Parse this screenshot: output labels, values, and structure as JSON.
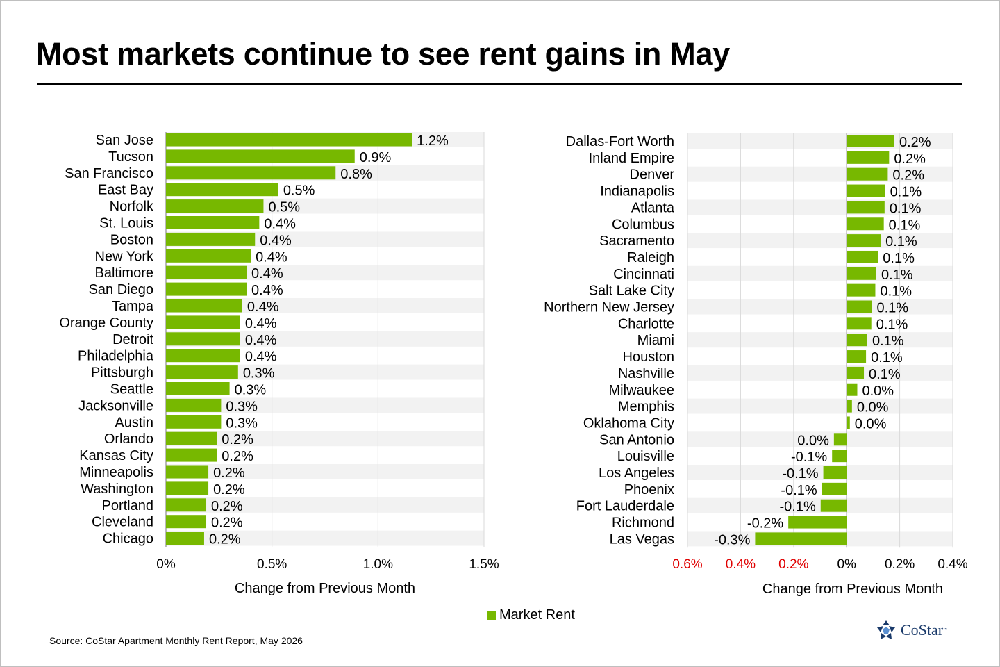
{
  "title": "Most markets continue to see rent gains in May",
  "source": "Source: CoStar Apartment Monthly Rent Report, May 2026",
  "legend": {
    "label": "Market Rent",
    "color": "#77b800"
  },
  "logo": {
    "text": "CoStar",
    "tm": "™"
  },
  "colors": {
    "bar": "#77b800",
    "stripe": "#f2f2f2",
    "grid": "#d9d9d9",
    "negative_tick": "#e00000"
  },
  "chart_data": [
    {
      "type": "bar",
      "orientation": "horizontal",
      "categories": [
        "San Jose",
        "Tucson",
        "San Francisco",
        "East Bay",
        "Norfolk",
        "St. Louis",
        "Boston",
        "New York",
        "Baltimore",
        "San Diego",
        "Tampa",
        "Orange County",
        "Detroit",
        "Philadelphia",
        "Pittsburgh",
        "Seattle",
        "Jacksonville",
        "Austin",
        "Orlando",
        "Kansas City",
        "Minneapolis",
        "Washington",
        "Portland",
        "Cleveland",
        "Chicago"
      ],
      "values": [
        1.16,
        0.89,
        0.8,
        0.53,
        0.46,
        0.44,
        0.42,
        0.4,
        0.38,
        0.38,
        0.36,
        0.35,
        0.35,
        0.35,
        0.34,
        0.3,
        0.26,
        0.26,
        0.24,
        0.24,
        0.2,
        0.2,
        0.19,
        0.19,
        0.18
      ],
      "data_labels": [
        "1.2%",
        "0.9%",
        "0.8%",
        "0.5%",
        "0.5%",
        "0.4%",
        "0.4%",
        "0.4%",
        "0.4%",
        "0.4%",
        "0.4%",
        "0.4%",
        "0.4%",
        "0.4%",
        "0.3%",
        "0.3%",
        "0.3%",
        "0.3%",
        "0.2%",
        "0.2%",
        "0.2%",
        "0.2%",
        "0.2%",
        "0.2%",
        "0.2%"
      ],
      "xlim": [
        0,
        1.5
      ],
      "xticks": [
        "0%",
        "0.5%",
        "1.0%",
        "1.5%"
      ],
      "xlabel": "Change from Previous Month",
      "ylabel": "",
      "grid": true,
      "series": [
        {
          "name": "Market Rent"
        }
      ]
    },
    {
      "type": "bar",
      "orientation": "horizontal",
      "categories": [
        "Dallas-Fort Worth",
        "Inland Empire",
        "Denver",
        "Indianapolis",
        "Atlanta",
        "Columbus",
        "Sacramento",
        "Raleigh",
        "Cincinnati",
        "Salt Lake City",
        "Northern New Jersey",
        "Charlotte",
        "Miami",
        "Houston",
        "Nashville",
        "Milwaukee",
        "Memphis",
        "Oklahoma City",
        "San Antonio",
        "Louisville",
        "Los Angeles",
        "Phoenix",
        "Fort Lauderdale",
        "Richmond",
        "Las Vegas"
      ],
      "values": [
        0.18,
        0.16,
        0.155,
        0.145,
        0.143,
        0.14,
        0.128,
        0.118,
        0.112,
        0.108,
        0.095,
        0.093,
        0.078,
        0.073,
        0.065,
        0.04,
        0.02,
        0.012,
        -0.048,
        -0.055,
        -0.088,
        -0.093,
        -0.098,
        -0.22,
        -0.345
      ],
      "data_labels": [
        "0.2%",
        "0.2%",
        "0.2%",
        "0.1%",
        "0.1%",
        "0.1%",
        "0.1%",
        "0.1%",
        "0.1%",
        "0.1%",
        "0.1%",
        "0.1%",
        "0.1%",
        "0.1%",
        "0.1%",
        "0.0%",
        "0.0%",
        "0.0%",
        "0.0%",
        "-0.1%",
        "-0.1%",
        "-0.1%",
        "-0.1%",
        "-0.2%",
        "-0.3%"
      ],
      "xlim": [
        -0.6,
        0.4
      ],
      "xticks": [
        "0.6%",
        "0.4%",
        "0.2%",
        "0%",
        "0.2%",
        "0.4%"
      ],
      "xtick_colors": [
        "#e00000",
        "#e00000",
        "#e00000",
        "#000000",
        "#000000",
        "#000000"
      ],
      "xlabel": "Change from Previous Month",
      "ylabel": "",
      "grid": true,
      "series": [
        {
          "name": "Market Rent"
        }
      ]
    }
  ]
}
